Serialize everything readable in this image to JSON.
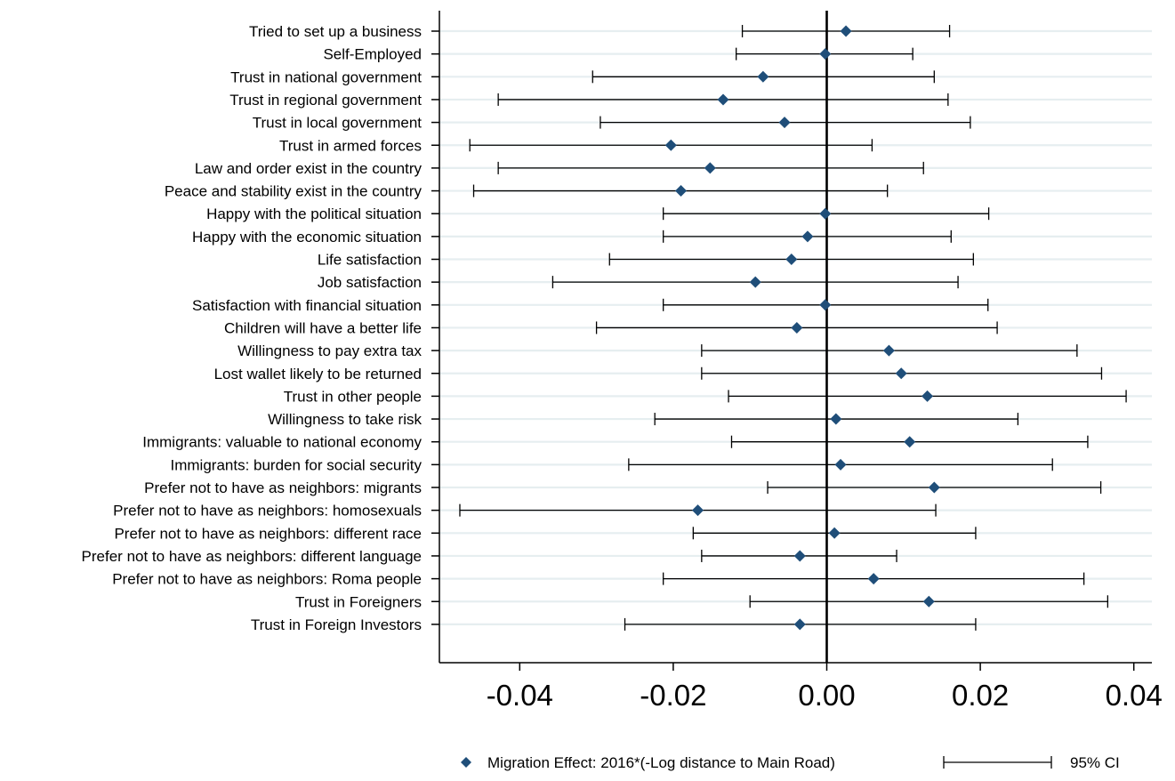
{
  "chart_data": {
    "type": "coefficient-plot",
    "title": "",
    "xlabel": "",
    "ylabel": "",
    "xlim": [
      -0.05,
      0.042
    ],
    "x_ticks": [
      -0.04,
      -0.02,
      0.0,
      0.02,
      0.04
    ],
    "x_tick_labels": [
      "-0.04",
      "-0.02",
      "0.00",
      "0.02",
      "0.04"
    ],
    "reference_line": 0,
    "grid": "horizontal",
    "legend_position": "bottom",
    "colors": {
      "marker": "#1f4e79",
      "ci": "#000000",
      "grid": "#e6eef0",
      "reference": "#000000"
    },
    "legend": {
      "point_label": "Migration Effect: 2016*(-Log distance to Main Road)",
      "ci_label": "95% CI"
    },
    "series": [
      {
        "label": "Tried to set up a business",
        "estimate": 0.0025,
        "ci_low": -0.011,
        "ci_high": 0.016
      },
      {
        "label": "Self-Employed",
        "estimate": -0.0002,
        "ci_low": -0.0118,
        "ci_high": 0.0112
      },
      {
        "label": "Trust in national government",
        "estimate": -0.0083,
        "ci_low": -0.0305,
        "ci_high": 0.014
      },
      {
        "label": "Trust in regional government",
        "estimate": -0.0135,
        "ci_low": -0.0428,
        "ci_high": 0.0158
      },
      {
        "label": "Trust in local government",
        "estimate": -0.0055,
        "ci_low": -0.0295,
        "ci_high": 0.0187
      },
      {
        "label": "Trust in armed forces",
        "estimate": -0.0203,
        "ci_low": -0.0465,
        "ci_high": 0.0059
      },
      {
        "label": "Law and order exist in the country",
        "estimate": -0.0152,
        "ci_low": -0.0428,
        "ci_high": 0.0126
      },
      {
        "label": "Peace and stability exist in the country",
        "estimate": -0.019,
        "ci_low": -0.046,
        "ci_high": 0.0079
      },
      {
        "label": "Happy with the political situation",
        "estimate": -0.0002,
        "ci_low": -0.0213,
        "ci_high": 0.0211
      },
      {
        "label": "Happy with the economic situation",
        "estimate": -0.0025,
        "ci_low": -0.0213,
        "ci_high": 0.0162
      },
      {
        "label": "Life satisfaction",
        "estimate": -0.0046,
        "ci_low": -0.0283,
        "ci_high": 0.0191
      },
      {
        "label": "Job satisfaction",
        "estimate": -0.0093,
        "ci_low": -0.0357,
        "ci_high": 0.0171
      },
      {
        "label": "Satisfaction with financial situation",
        "estimate": -0.0002,
        "ci_low": -0.0213,
        "ci_high": 0.021
      },
      {
        "label": "Children will have a better life",
        "estimate": -0.0039,
        "ci_low": -0.03,
        "ci_high": 0.0222
      },
      {
        "label": "Willingness to pay extra tax",
        "estimate": 0.0081,
        "ci_low": -0.0163,
        "ci_high": 0.0326
      },
      {
        "label": "Lost wallet likely to be returned",
        "estimate": 0.0097,
        "ci_low": -0.0163,
        "ci_high": 0.0358
      },
      {
        "label": "Trust in other people",
        "estimate": 0.0131,
        "ci_low": -0.0128,
        "ci_high": 0.039
      },
      {
        "label": "Willingness to take risk",
        "estimate": 0.0012,
        "ci_low": -0.0224,
        "ci_high": 0.0249
      },
      {
        "label": "Immigrants: valuable to national economy",
        "estimate": 0.0108,
        "ci_low": -0.0124,
        "ci_high": 0.034
      },
      {
        "label": "Immigrants: burden for social security",
        "estimate": 0.0018,
        "ci_low": -0.0258,
        "ci_high": 0.0294
      },
      {
        "label": "Prefer not to have as neighbors: migrants",
        "estimate": 0.014,
        "ci_low": -0.0077,
        "ci_high": 0.0357
      },
      {
        "label": "Prefer not to have as neighbors: homosexuals",
        "estimate": -0.0168,
        "ci_low": -0.0478,
        "ci_high": 0.0142
      },
      {
        "label": "Prefer not to have as neighbors: different race",
        "estimate": 0.001,
        "ci_low": -0.0174,
        "ci_high": 0.0194
      },
      {
        "label": "Prefer not to have as neighbors: different language",
        "estimate": -0.0035,
        "ci_low": -0.0163,
        "ci_high": 0.0091
      },
      {
        "label": "Prefer not to have as neighbors: Roma people",
        "estimate": 0.0061,
        "ci_low": -0.0213,
        "ci_high": 0.0335
      },
      {
        "label": "Trust in Foreigners",
        "estimate": 0.0133,
        "ci_low": -0.01,
        "ci_high": 0.0366
      },
      {
        "label": "Trust in Foreign Investors",
        "estimate": -0.0035,
        "ci_low": -0.0263,
        "ci_high": 0.0194
      }
    ]
  }
}
